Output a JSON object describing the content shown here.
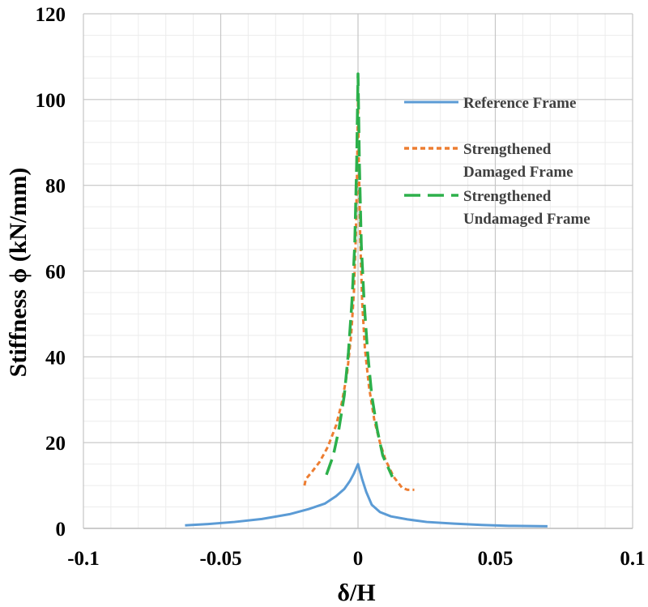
{
  "chart_data": {
    "type": "line",
    "title": "",
    "xlabel": "δ/H",
    "ylabel": "Stiffness ϕ (kN/mm)",
    "xlim": [
      -0.1,
      0.1
    ],
    "ylim": [
      0,
      120
    ],
    "x_ticks": [
      -0.1,
      -0.05,
      0,
      0.05,
      0.1
    ],
    "x_tick_labels": [
      "-0.1",
      "-0.05",
      "0",
      "0.05",
      "0.1"
    ],
    "y_ticks": [
      0,
      20,
      40,
      60,
      80,
      100,
      120
    ],
    "y_tick_labels": [
      "0",
      "20",
      "40",
      "60",
      "80",
      "100",
      "120"
    ],
    "grid": true,
    "legend_position": "top-right",
    "series": [
      {
        "name": "Reference Frame",
        "color": "#5B9BD5",
        "style": "solid",
        "x": [
          -0.063,
          -0.055,
          -0.045,
          -0.035,
          -0.025,
          -0.018,
          -0.012,
          -0.008,
          -0.005,
          -0.003,
          -0.0015,
          -0.0005,
          0,
          0.0005,
          0.0015,
          0.003,
          0.005,
          0.008,
          0.012,
          0.018,
          0.025,
          0.035,
          0.045,
          0.055,
          0.069
        ],
        "y": [
          0.7,
          1.0,
          1.5,
          2.2,
          3.3,
          4.5,
          5.8,
          7.5,
          9.2,
          11.0,
          12.8,
          14.3,
          15.0,
          13.8,
          11.5,
          8.5,
          5.5,
          3.8,
          2.8,
          2.1,
          1.5,
          1.1,
          0.8,
          0.6,
          0.5
        ]
      },
      {
        "name": "Strengthened Damaged Frame",
        "color": "#ED7D31",
        "style": "dotted",
        "x": [
          -0.0195,
          -0.019,
          -0.017,
          -0.014,
          -0.011,
          -0.008,
          -0.006,
          -0.004,
          -0.0025,
          -0.0015,
          -0.0008,
          -0.0003,
          0,
          0.0003,
          0.0008,
          0.0015,
          0.0025,
          0.004,
          0.006,
          0.008,
          0.01,
          0.013,
          0.016,
          0.018,
          0.0205
        ],
        "y": [
          10,
          11.5,
          13,
          15.5,
          19,
          24,
          29,
          36,
          45,
          55,
          68,
          85,
          100,
          85,
          68,
          53,
          42,
          33,
          25,
          20,
          16,
          12,
          9.5,
          9,
          9
        ]
      },
      {
        "name": "Strengthened Undamaged Frame",
        "color": "#2DB04B",
        "style": "dashed",
        "x": [
          -0.0115,
          -0.009,
          -0.007,
          -0.005,
          -0.0035,
          -0.0022,
          -0.0012,
          -0.0005,
          0,
          0.0005,
          0.0012,
          0.0022,
          0.0035,
          0.005,
          0.007,
          0.009,
          0.0125
        ],
        "y": [
          12.5,
          17,
          23,
          31,
          41,
          53,
          66,
          85,
          106,
          85,
          66,
          53,
          41,
          31,
          23,
          17,
          12
        ]
      }
    ]
  }
}
